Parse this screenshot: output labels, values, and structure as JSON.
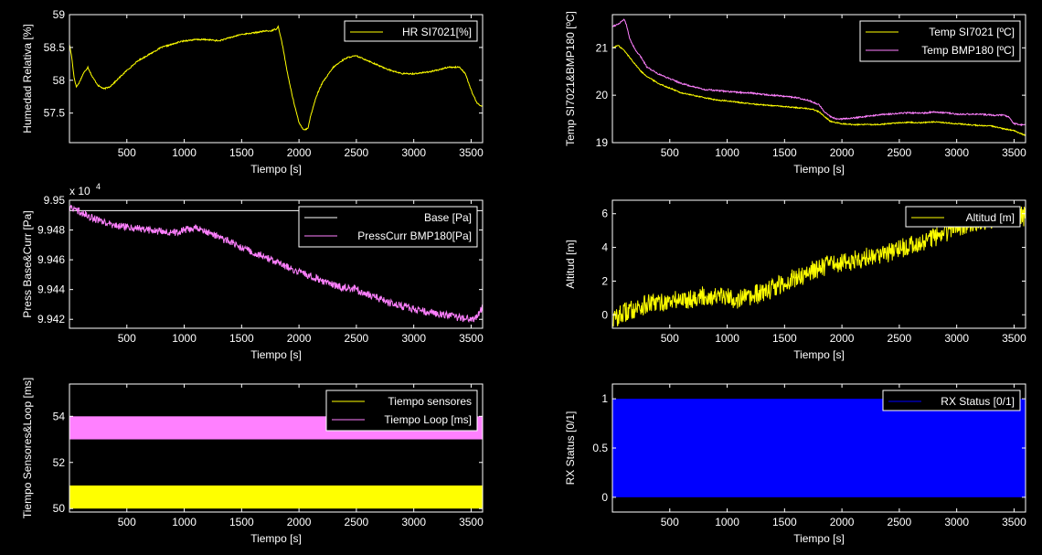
{
  "figure": {
    "background": "#000000",
    "axis_color": "#ffffff"
  },
  "chart_data": [
    {
      "id": "hr",
      "type": "line",
      "title": "",
      "xlabel": "Tiempo [s]",
      "ylabel": "Humedad Relativa [%]",
      "xlim": [
        0,
        3600
      ],
      "ylim": [
        57.05,
        59
      ],
      "xticks": [
        500,
        1000,
        1500,
        2000,
        2500,
        3000,
        3500
      ],
      "yticks": [
        57.5,
        58,
        58.5,
        59
      ],
      "legend_position": "top-right",
      "series": [
        {
          "name": "HR SI7021[%]",
          "color": "#ffff00",
          "noise": 0.01,
          "x": [
            0,
            20,
            40,
            60,
            80,
            120,
            160,
            200,
            250,
            300,
            350,
            400,
            500,
            600,
            700,
            800,
            900,
            950,
            1000,
            1100,
            1200,
            1300,
            1400,
            1500,
            1600,
            1700,
            1750,
            1800,
            1820,
            1860,
            1900,
            1950,
            2000,
            2040,
            2060,
            2080,
            2100,
            2150,
            2200,
            2300,
            2400,
            2450,
            2500,
            2600,
            2700,
            2800,
            2900,
            3000,
            3100,
            3200,
            3300,
            3400,
            3450,
            3500,
            3550,
            3600
          ],
          "y": [
            58.55,
            58.35,
            58.05,
            57.9,
            57.95,
            58.1,
            58.2,
            58.05,
            57.92,
            57.87,
            57.9,
            57.98,
            58.15,
            58.3,
            58.4,
            58.5,
            58.55,
            58.58,
            58.6,
            58.62,
            58.62,
            58.6,
            58.65,
            58.7,
            58.72,
            58.75,
            58.75,
            58.78,
            58.82,
            58.5,
            58.1,
            57.7,
            57.35,
            57.25,
            57.25,
            57.28,
            57.45,
            57.75,
            57.95,
            58.2,
            58.33,
            58.36,
            58.37,
            58.3,
            58.22,
            58.15,
            58.1,
            58.1,
            58.12,
            58.15,
            58.2,
            58.2,
            58.1,
            57.85,
            57.65,
            57.6
          ]
        }
      ]
    },
    {
      "id": "temp",
      "type": "line",
      "title": "",
      "xlabel": "Tiempo [s]",
      "ylabel": "Temp SI7021&BMP180 [ºC]",
      "xlim": [
        0,
        3600
      ],
      "ylim": [
        19,
        21.7
      ],
      "xticks": [
        500,
        1000,
        1500,
        2000,
        2500,
        3000,
        3500
      ],
      "yticks": [
        19,
        20,
        21
      ],
      "legend_position": "top-right",
      "series": [
        {
          "name": "Temp SI7021 [ºC]",
          "color": "#ffff00",
          "noise": 0.012,
          "x": [
            0,
            50,
            100,
            150,
            200,
            250,
            300,
            400,
            500,
            600,
            700,
            800,
            900,
            1000,
            1100,
            1200,
            1300,
            1400,
            1500,
            1600,
            1700,
            1750,
            1800,
            1850,
            1900,
            1950,
            2000,
            2100,
            2200,
            2300,
            2400,
            2500,
            2600,
            2700,
            2800,
            2900,
            3000,
            3100,
            3200,
            3300,
            3400,
            3500,
            3550,
            3600
          ],
          "y": [
            21.0,
            21.05,
            20.95,
            20.8,
            20.65,
            20.5,
            20.4,
            20.25,
            20.15,
            20.05,
            20.0,
            19.95,
            19.9,
            19.88,
            19.85,
            19.82,
            19.8,
            19.78,
            19.76,
            19.74,
            19.72,
            19.7,
            19.65,
            19.55,
            19.45,
            19.42,
            19.4,
            19.38,
            19.38,
            19.38,
            19.4,
            19.42,
            19.43,
            19.42,
            19.44,
            19.42,
            19.4,
            19.38,
            19.36,
            19.35,
            19.3,
            19.25,
            19.2,
            19.15
          ]
        },
        {
          "name": "Temp BMP180 [ºC]",
          "color": "#ff80ff",
          "noise": 0.015,
          "x": [
            0,
            50,
            100,
            120,
            150,
            200,
            250,
            300,
            400,
            500,
            600,
            700,
            800,
            900,
            1000,
            1100,
            1200,
            1300,
            1400,
            1500,
            1600,
            1700,
            1750,
            1800,
            1850,
            1900,
            1950,
            2000,
            2100,
            2200,
            2300,
            2400,
            2500,
            2600,
            2700,
            2800,
            2900,
            3000,
            3100,
            3200,
            3300,
            3400,
            3450,
            3500,
            3550,
            3600
          ],
          "y": [
            21.45,
            21.5,
            21.6,
            21.5,
            21.2,
            20.95,
            20.8,
            20.6,
            20.45,
            20.35,
            20.25,
            20.18,
            20.12,
            20.1,
            20.08,
            20.06,
            20.05,
            20.02,
            20.0,
            19.98,
            19.95,
            19.9,
            19.85,
            19.8,
            19.65,
            19.55,
            19.5,
            19.5,
            19.52,
            19.55,
            19.58,
            19.6,
            19.62,
            19.63,
            19.62,
            19.65,
            19.63,
            19.6,
            19.6,
            19.6,
            19.58,
            19.58,
            19.55,
            19.4,
            19.38,
            19.38
          ]
        }
      ]
    },
    {
      "id": "press",
      "type": "line",
      "title": "",
      "xlabel": "Tiempo [s]",
      "ylabel": "Press Base&Curr [Pa]",
      "exponent_label": "x 10",
      "exponent_power": "4",
      "xlim": [
        0,
        3600
      ],
      "ylim": [
        9.9414,
        9.95
      ],
      "xticks": [
        500,
        1000,
        1500,
        2000,
        2500,
        3000,
        3500
      ],
      "yticks": [
        9.942,
        9.944,
        9.946,
        9.948,
        9.95
      ],
      "ytick_labels": [
        "9.942",
        "9.944",
        "9.946",
        "9.948",
        "9.95"
      ],
      "legend_position": "top-right",
      "series": [
        {
          "name": "Base [Pa]",
          "color": "#ffffff",
          "noise": 0,
          "x": [
            0,
            3600
          ],
          "y": [
            9.9493,
            9.9493
          ]
        },
        {
          "name": "PressCurr BMP180[Pa]",
          "color": "#ff80ff",
          "noise": 0.00025,
          "x": [
            0,
            100,
            200,
            300,
            400,
            500,
            600,
            700,
            800,
            900,
            1000,
            1100,
            1200,
            1300,
            1400,
            1500,
            1600,
            1700,
            1800,
            1900,
            2000,
            2100,
            2200,
            2300,
            2400,
            2500,
            2600,
            2700,
            2800,
            2900,
            3000,
            3100,
            3200,
            3300,
            3400,
            3500,
            3550,
            3600
          ],
          "y": [
            9.9495,
            9.9492,
            9.9488,
            9.9485,
            9.9483,
            9.9482,
            9.9481,
            9.948,
            9.9479,
            9.9478,
            9.948,
            9.9481,
            9.9479,
            9.9475,
            9.9472,
            9.9468,
            9.9465,
            9.9462,
            9.9458,
            9.9455,
            9.9452,
            9.9449,
            9.9446,
            9.9443,
            9.9441,
            9.944,
            9.9437,
            9.9434,
            9.9431,
            9.9429,
            9.9427,
            9.9425,
            9.9424,
            9.9423,
            9.9421,
            9.942,
            9.9422,
            9.9428
          ]
        }
      ]
    },
    {
      "id": "alt",
      "type": "line",
      "title": "",
      "xlabel": "Tiempo [s]",
      "ylabel": "Altitud [m]",
      "xlim": [
        0,
        3600
      ],
      "ylim": [
        -0.8,
        6.8
      ],
      "xticks": [
        500,
        1000,
        1500,
        2000,
        2500,
        3000,
        3500
      ],
      "yticks": [
        0,
        2,
        4,
        6
      ],
      "legend_position": "top-right",
      "series": [
        {
          "name": "Altitud [m]",
          "color": "#ffff00",
          "noise": 0.6,
          "x": [
            0,
            100,
            200,
            300,
            400,
            500,
            600,
            700,
            800,
            900,
            1000,
            1100,
            1200,
            1300,
            1400,
            1500,
            1600,
            1700,
            1800,
            1900,
            2000,
            2100,
            2200,
            2300,
            2400,
            2500,
            2600,
            2700,
            2800,
            2900,
            3000,
            3100,
            3200,
            3300,
            3400,
            3500,
            3600
          ],
          "y": [
            -0.3,
            0.1,
            0.4,
            0.6,
            0.7,
            0.8,
            0.9,
            1.0,
            1.1,
            1.1,
            1.0,
            0.95,
            1.0,
            1.3,
            1.6,
            1.9,
            2.2,
            2.5,
            2.8,
            3.0,
            3.1,
            3.2,
            3.4,
            3.6,
            3.7,
            3.9,
            4.1,
            4.3,
            4.6,
            4.9,
            5.2,
            5.4,
            5.6,
            5.7,
            5.8,
            5.9,
            5.8
          ]
        }
      ]
    },
    {
      "id": "tiempo",
      "type": "area",
      "title": "",
      "xlabel": "Tiempo [s]",
      "ylabel": "Tiempo Sensores&Loop [ms]",
      "xlim": [
        0,
        3600
      ],
      "ylim": [
        49.85,
        55.4
      ],
      "xticks": [
        500,
        1000,
        1500,
        2000,
        2500,
        3000,
        3500
      ],
      "yticks": [
        50,
        52,
        54
      ],
      "legend_position": "top-right",
      "series": [
        {
          "name": "Tiempo sensores",
          "color": "#ffff00",
          "band": [
            50,
            51
          ]
        },
        {
          "name": "Tiempo Loop [ms]",
          "color": "#ff80ff",
          "band": [
            53,
            54
          ]
        }
      ]
    },
    {
      "id": "rx",
      "type": "area",
      "title": "",
      "xlabel": "Tiempo [s]",
      "ylabel": "RX Status [0/1]",
      "xlim": [
        0,
        3600
      ],
      "ylim": [
        -0.15,
        1.15
      ],
      "xticks": [
        500,
        1000,
        1500,
        2000,
        2500,
        3000,
        3500
      ],
      "yticks": [
        0,
        0.5,
        1
      ],
      "legend_position": "top-right",
      "series": [
        {
          "name": "RX Status [0/1]",
          "color": "#0000ff",
          "band": [
            0,
            1
          ]
        }
      ]
    }
  ]
}
